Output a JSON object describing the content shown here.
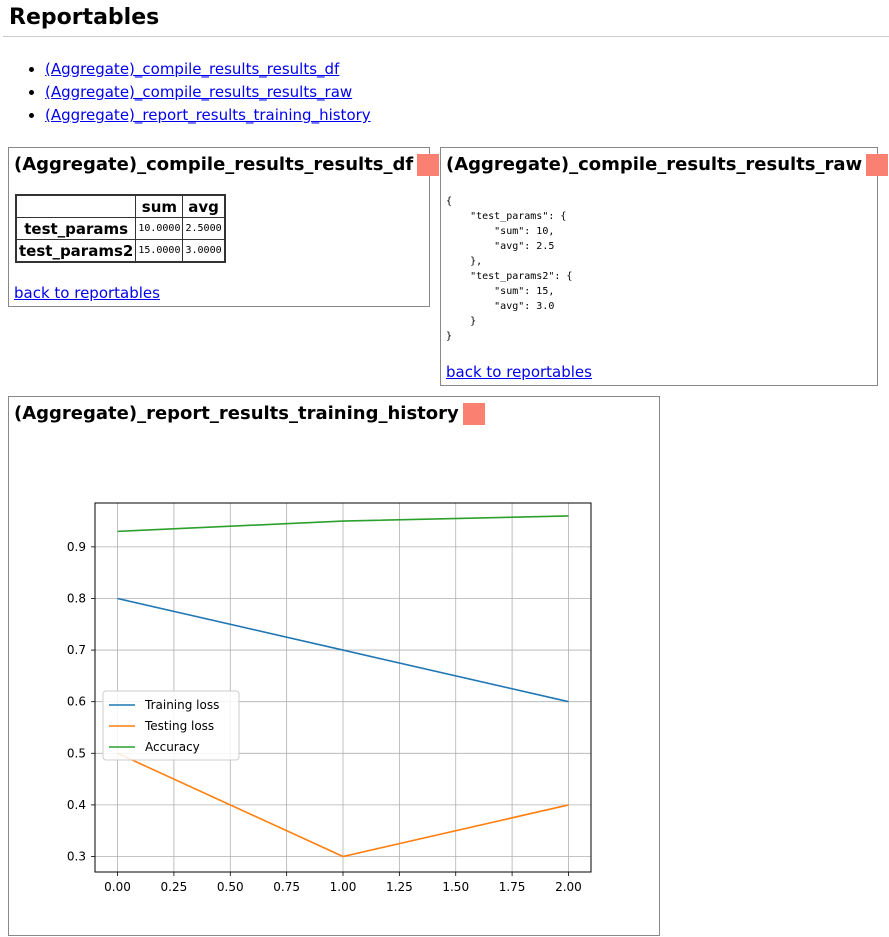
{
  "page": {
    "title": "Reportables"
  },
  "toc": [
    "(Aggregate)_compile_results_results_df",
    "(Aggregate)_compile_results_results_raw",
    "(Aggregate)_report_results_training_history"
  ],
  "swatch_color": "#fa8072",
  "panels": {
    "df": {
      "title": "(Aggregate)_compile_results_results_df",
      "columns": [
        "sum",
        "avg"
      ],
      "rows": [
        {
          "index": "test_params",
          "sum": "10.0000",
          "avg": "2.5000"
        },
        {
          "index": "test_params2",
          "sum": "15.0000",
          "avg": "3.0000"
        }
      ],
      "back_link": "back to reportables"
    },
    "raw": {
      "title": "(Aggregate)_compile_results_results_raw",
      "json_text": "{\n    \"test_params\": {\n        \"sum\": 10,\n        \"avg\": 2.5\n    },\n    \"test_params2\": {\n        \"sum\": 15,\n        \"avg\": 3.0\n    }\n}",
      "back_link": "back to reportables"
    },
    "history": {
      "title": "(Aggregate)_report_results_training_history"
    }
  },
  "chart_data": {
    "type": "line",
    "title": "",
    "xlabel": "",
    "ylabel": "",
    "xlim": [
      -0.1,
      2.1
    ],
    "ylim": [
      0.27,
      0.985
    ],
    "xticks": [
      0.0,
      0.25,
      0.5,
      0.75,
      1.0,
      1.25,
      1.5,
      1.75,
      2.0
    ],
    "xtick_labels": [
      "0.00",
      "0.25",
      "0.50",
      "0.75",
      "1.00",
      "1.25",
      "1.50",
      "1.75",
      "2.00"
    ],
    "yticks": [
      0.3,
      0.4,
      0.5,
      0.6,
      0.7,
      0.8,
      0.9
    ],
    "ytick_labels": [
      "0.3",
      "0.4",
      "0.5",
      "0.6",
      "0.7",
      "0.8",
      "0.9"
    ],
    "grid": true,
    "legend": "center-left",
    "x": [
      0,
      1,
      2
    ],
    "series": [
      {
        "name": "Training loss",
        "values": [
          0.8,
          0.7,
          0.6
        ],
        "color": "#1f77b4"
      },
      {
        "name": "Testing loss",
        "values": [
          0.5,
          0.3,
          0.4
        ],
        "color": "#ff7f0e"
      },
      {
        "name": "Accuracy",
        "values": [
          0.93,
          0.95,
          0.96
        ],
        "color": "#2ca02c"
      }
    ]
  }
}
